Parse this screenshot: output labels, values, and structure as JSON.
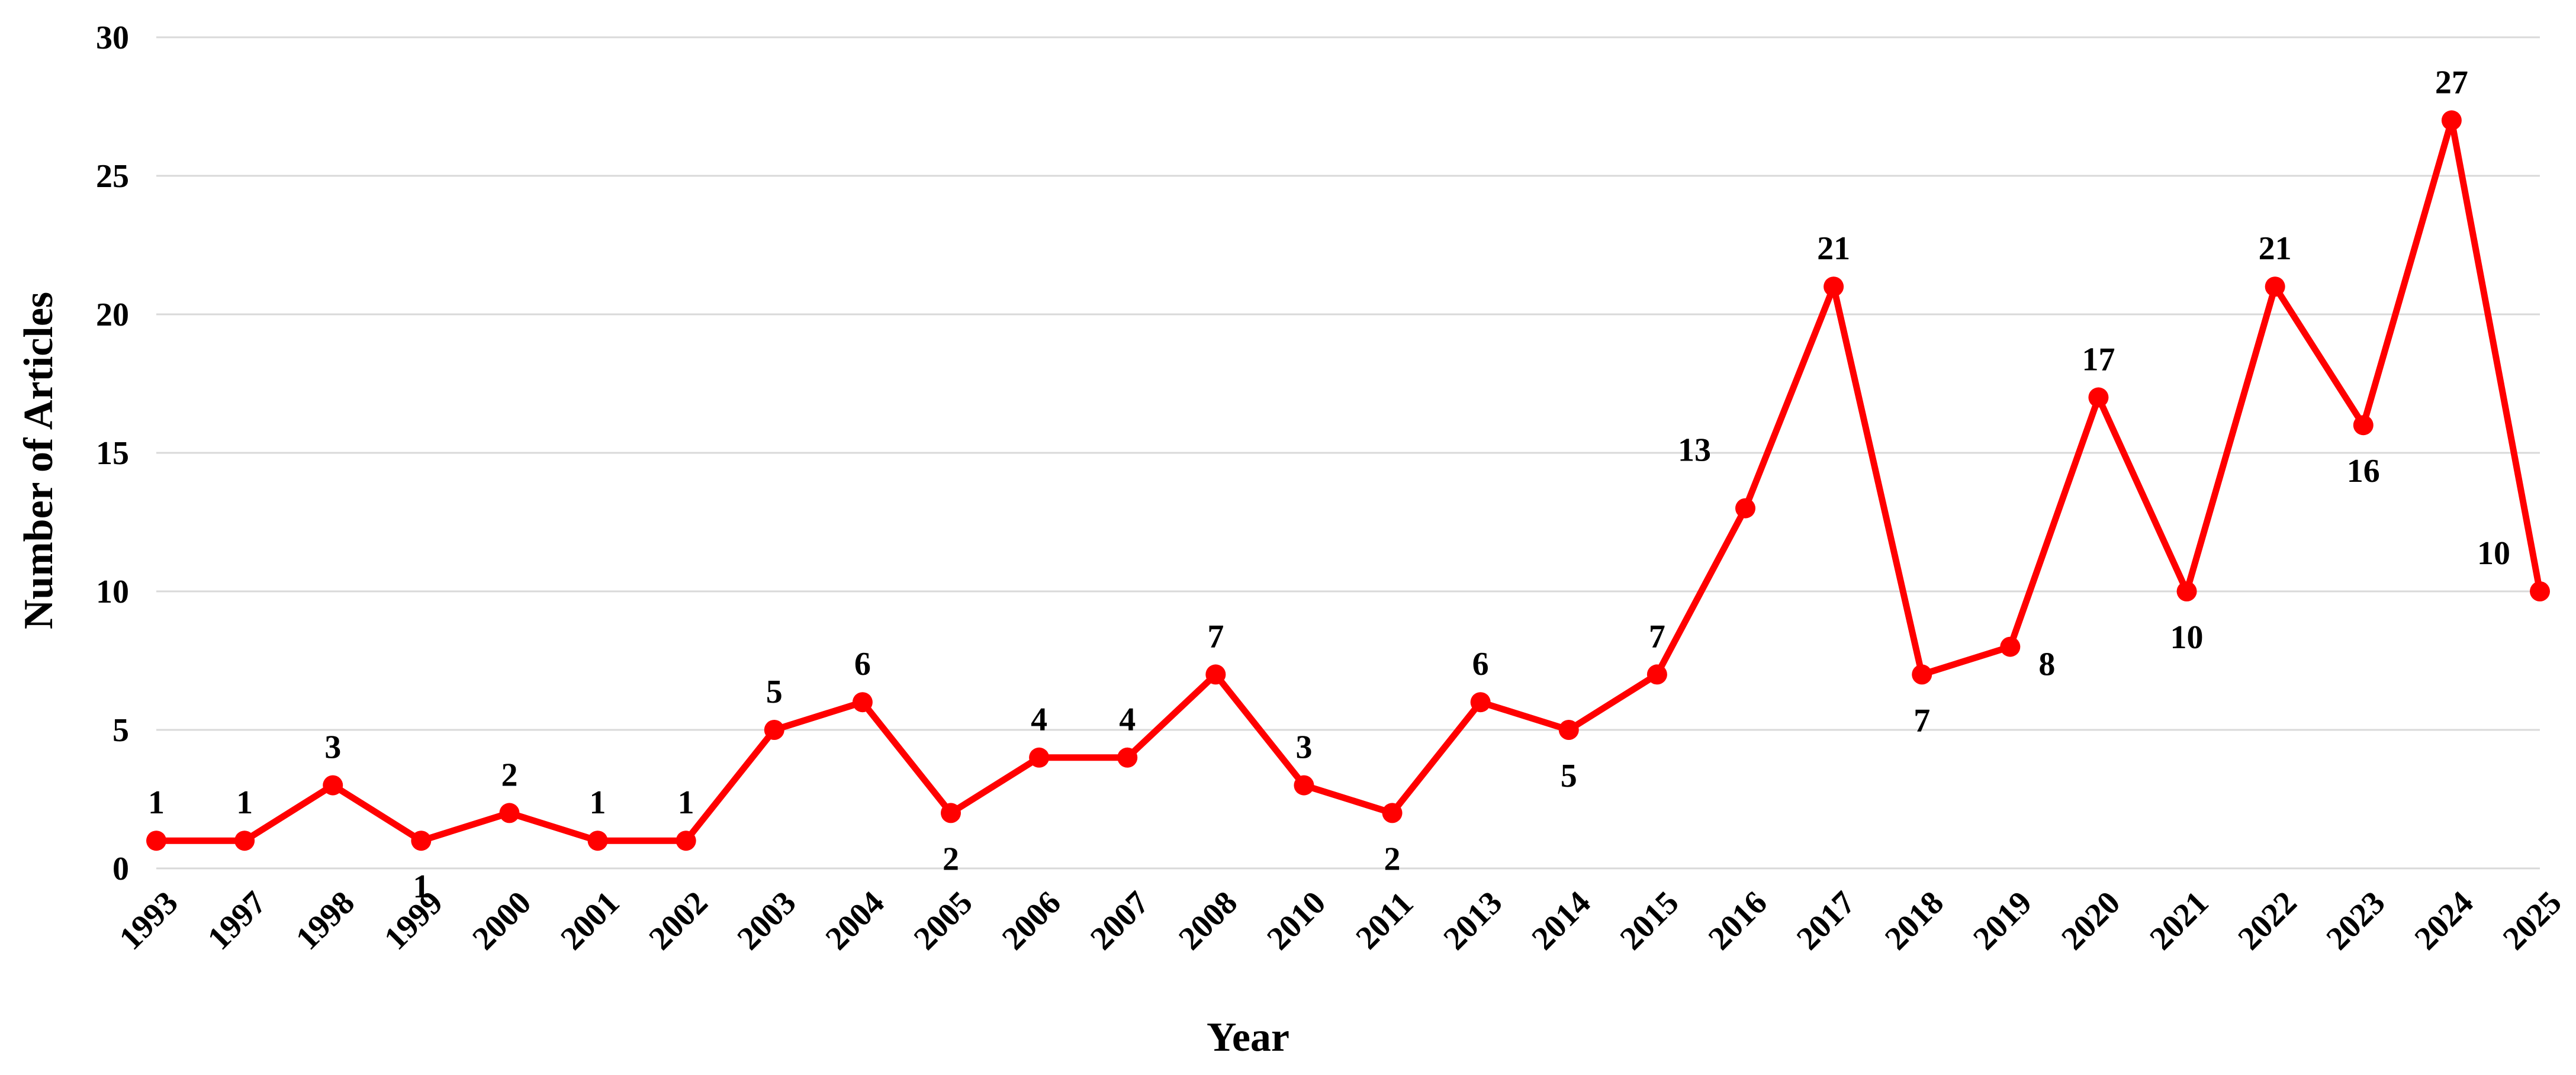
{
  "chart_data": {
    "type": "line",
    "xlabel": "Year",
    "ylabel": "Number of Articles",
    "ylim": [
      0,
      30
    ],
    "yticks": [
      0,
      5,
      10,
      15,
      20,
      25,
      30
    ],
    "grid": "horizontal",
    "categories": [
      "1993",
      "1997",
      "1998",
      "1999",
      "2000",
      "2001",
      "2002",
      "2003",
      "2004",
      "2005",
      "2006",
      "2007",
      "2008",
      "2010",
      "2011",
      "2013",
      "2014",
      "2015",
      "2016",
      "2017",
      "2018",
      "2019",
      "2020",
      "2021",
      "2022",
      "2023",
      "2024",
      "2025"
    ],
    "series": [
      {
        "values": [
          1,
          1,
          3,
          1,
          2,
          1,
          1,
          5,
          6,
          2,
          4,
          4,
          7,
          3,
          2,
          6,
          5,
          7,
          13,
          21,
          7,
          8,
          17,
          10,
          21,
          16,
          27,
          10
        ],
        "color": "#ff0000"
      }
    ]
  }
}
